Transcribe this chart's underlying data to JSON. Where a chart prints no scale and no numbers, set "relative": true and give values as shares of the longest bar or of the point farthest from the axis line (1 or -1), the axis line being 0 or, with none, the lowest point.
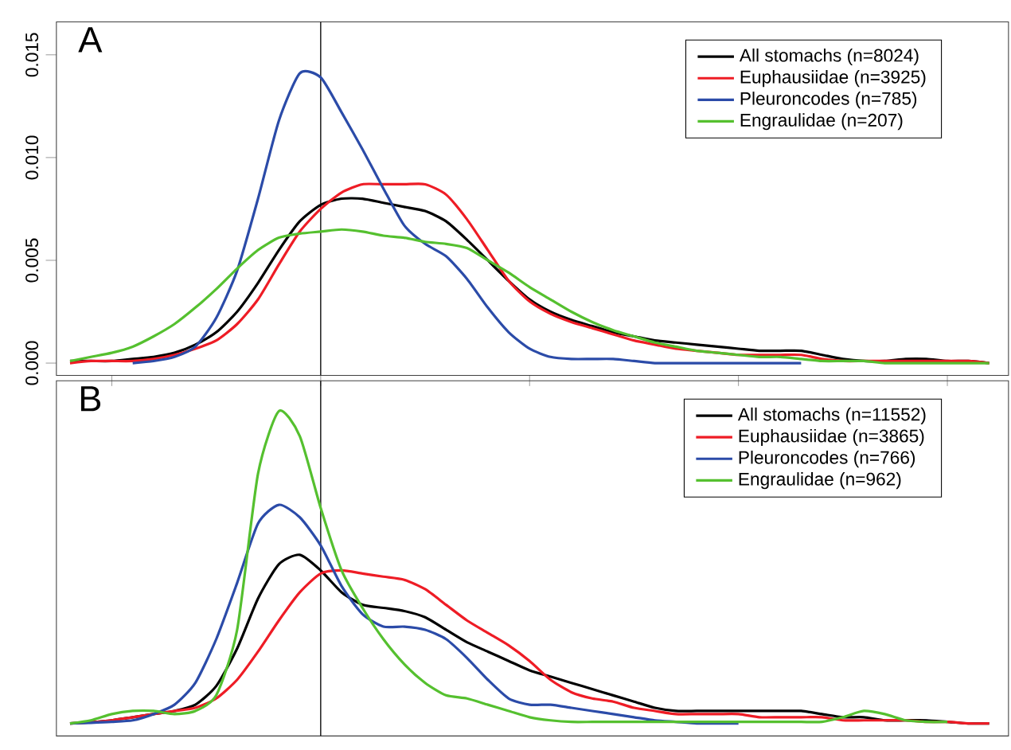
{
  "chart_data": [
    {
      "type": "line",
      "title": "A",
      "categories": [
        null,
        null,
        null,
        null,
        null,
        null,
        null,
        null,
        null,
        null,
        null,
        null,
        null,
        null,
        null,
        null,
        null,
        null,
        null,
        null,
        null,
        null,
        null,
        null,
        null,
        null,
        null,
        null,
        null,
        null,
        null,
        null,
        null,
        null,
        null,
        null,
        null,
        null,
        null,
        null,
        null,
        null,
        null,
        null,
        null
      ],
      "series": [
        {
          "name": "All stomachs (n=8024)",
          "color": "#000000",
          "values": [
            0.0001,
            0.0001,
            0.0001,
            0.0002,
            0.0003,
            0.0005,
            0.0009,
            0.0015,
            0.0025,
            0.0039,
            0.0055,
            0.0069,
            0.0077,
            0.008,
            0.008,
            0.0078,
            0.0076,
            0.0074,
            0.0069,
            0.006,
            0.005,
            0.004,
            0.0031,
            0.0025,
            0.0021,
            0.0018,
            0.0015,
            0.0013,
            0.0011,
            0.001,
            0.0009,
            0.0008,
            0.0007,
            0.0006,
            0.0006,
            0.0006,
            0.0004,
            0.0002,
            0.0001,
            0.0001,
            0.0002,
            0.0002,
            0.0001,
            0.0001,
            0.0
          ]
        },
        {
          "name": "Euphausiidae (n=3925)",
          "color": "#ee1c25",
          "values": [
            0.0,
            0.0001,
            0.0001,
            0.0001,
            0.0002,
            0.0004,
            0.0007,
            0.0011,
            0.0019,
            0.0031,
            0.0048,
            0.0064,
            0.0075,
            0.0083,
            0.0087,
            0.0087,
            0.0087,
            0.0087,
            0.0082,
            0.007,
            0.0055,
            0.004,
            0.003,
            0.0024,
            0.002,
            0.0017,
            0.0014,
            0.0011,
            0.0009,
            0.0007,
            0.0006,
            0.0005,
            0.0004,
            0.0004,
            0.0004,
            0.0004,
            0.0002,
            0.0001,
            0.0001,
            0.0001,
            0.0001,
            0.0001,
            0.0001,
            0.0001,
            0.0
          ]
        },
        {
          "name": "Pleuroncodes (n=785)",
          "color": "#2b4ba8",
          "values": [
            null,
            null,
            null,
            0.0,
            0.0001,
            0.0003,
            0.0008,
            0.0022,
            0.0045,
            0.008,
            0.0118,
            0.0141,
            0.0139,
            0.0122,
            0.0104,
            0.0085,
            0.0067,
            0.0058,
            0.0052,
            0.0041,
            0.0027,
            0.0015,
            0.0007,
            0.0003,
            0.0002,
            0.0002,
            0.0002,
            0.0001,
            0.0,
            0.0,
            0.0,
            0.0,
            0.0,
            0.0,
            0.0,
            0.0,
            null,
            null,
            null,
            null,
            null,
            null,
            null,
            null,
            null
          ]
        },
        {
          "name": "Engraulidae (n=207)",
          "color": "#55c02f",
          "values": [
            0.0001,
            0.0003,
            0.0005,
            0.0008,
            0.0013,
            0.0019,
            0.0027,
            0.0036,
            0.0046,
            0.0055,
            0.0061,
            0.0063,
            0.0064,
            0.0065,
            0.0064,
            0.0062,
            0.0061,
            0.0059,
            0.0058,
            0.0056,
            0.005,
            0.0044,
            0.0037,
            0.0031,
            0.0025,
            0.002,
            0.0016,
            0.0013,
            0.001,
            0.0008,
            0.0006,
            0.0005,
            0.0004,
            0.0003,
            0.0003,
            0.0002,
            0.0001,
            0.0001,
            0.0001,
            0.0,
            0.0,
            0.0,
            0.0,
            0.0,
            0.0
          ]
        }
      ],
      "ylim": [
        -0.0006,
        0.0166
      ],
      "yticks": [
        {
          "value": 0,
          "label": "0.000"
        },
        {
          "value": 0.005,
          "label": "0.005"
        },
        {
          "value": 0.01,
          "label": "0.010"
        },
        {
          "value": 0.015,
          "label": "0.015"
        }
      ],
      "legend": "top right",
      "tick_labels": "y",
      "grid": false,
      "marker": "none",
      "line_style": "solid"
    },
    {
      "type": "line",
      "title": "B",
      "relative": true,
      "categories": [
        null,
        null,
        null,
        null,
        null,
        null,
        null,
        null,
        null,
        null,
        null,
        null,
        null,
        null,
        null,
        null,
        null,
        null,
        null,
        null,
        null,
        null,
        null,
        null,
        null,
        null,
        null,
        null,
        null,
        null,
        null,
        null,
        null,
        null,
        null,
        null,
        null,
        null,
        null,
        null,
        null,
        null,
        null,
        null,
        null
      ],
      "series": [
        {
          "name": "All stomachs (n=11552)",
          "color": "#000000",
          "values": [
            0.0,
            0.004,
            0.01,
            0.02,
            0.03,
            0.04,
            0.06,
            0.12,
            0.24,
            0.4,
            0.51,
            0.54,
            0.49,
            0.42,
            0.38,
            0.37,
            0.36,
            0.34,
            0.3,
            0.26,
            0.23,
            0.2,
            0.17,
            0.15,
            0.13,
            0.11,
            0.09,
            0.07,
            0.05,
            0.04,
            0.04,
            0.04,
            0.04,
            0.04,
            0.04,
            0.04,
            0.03,
            0.02,
            0.02,
            0.01,
            0.01,
            0.01,
            0.005,
            0.0,
            0.0
          ]
        },
        {
          "name": "Euphausiidae (n=3865)",
          "color": "#ee1c25",
          "values": [
            0.0,
            0.004,
            0.01,
            0.02,
            0.03,
            0.04,
            0.05,
            0.08,
            0.14,
            0.23,
            0.33,
            0.42,
            0.48,
            0.49,
            0.48,
            0.47,
            0.46,
            0.43,
            0.38,
            0.33,
            0.29,
            0.25,
            0.2,
            0.14,
            0.1,
            0.08,
            0.07,
            0.05,
            0.04,
            0.03,
            0.03,
            0.03,
            0.03,
            0.02,
            0.02,
            0.02,
            0.02,
            0.01,
            0.01,
            0.01,
            0.01,
            0.005,
            0.005,
            0.0,
            0.0
          ]
        },
        {
          "name": "Pleuroncodes (n=766)",
          "color": "#2b4ba8",
          "values": [
            0.0,
            0.002,
            0.005,
            0.01,
            0.03,
            0.06,
            0.13,
            0.27,
            0.45,
            0.64,
            0.7,
            0.66,
            0.57,
            0.44,
            0.35,
            0.31,
            0.31,
            0.3,
            0.27,
            0.21,
            0.14,
            0.08,
            0.06,
            0.06,
            0.05,
            0.04,
            0.03,
            0.02,
            0.01,
            0.005,
            0.0,
            0.0,
            0.0,
            null,
            null,
            null,
            null,
            null,
            null,
            null,
            null,
            null,
            null,
            null,
            null
          ]
        },
        {
          "name": "Engraulidae (n=962)",
          "color": "#55c02f",
          "values": [
            0.0,
            0.01,
            0.03,
            0.04,
            0.04,
            0.03,
            0.04,
            0.09,
            0.3,
            0.8,
            1.0,
            0.92,
            0.69,
            0.49,
            0.37,
            0.27,
            0.19,
            0.13,
            0.09,
            0.08,
            0.06,
            0.04,
            0.02,
            0.01,
            0.005,
            0.005,
            0.005,
            0.005,
            0.005,
            0.005,
            0.005,
            0.005,
            0.005,
            0.005,
            0.005,
            0.005,
            0.005,
            0.02,
            0.04,
            0.03,
            0.01,
            0.005,
            0.005,
            null,
            null
          ]
        }
      ],
      "legend": "top right",
      "tick_labels": false,
      "grid": false,
      "marker": "none",
      "line_style": "solid"
    }
  ]
}
